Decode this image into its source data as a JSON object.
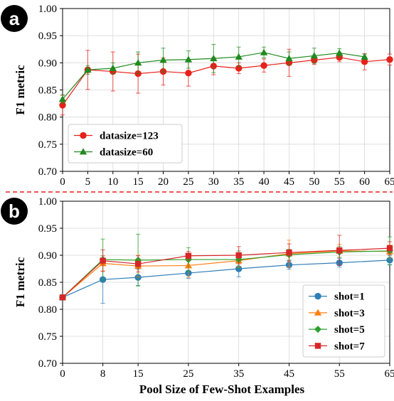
{
  "colors": {
    "red": "#e8201a",
    "green": "#1f8a1f",
    "blue": "#2f7fb8",
    "orange": "#ff7f0e",
    "green_b": "#2ca02c",
    "red_b": "#d62728",
    "divider": "#e8201a"
  },
  "chart_data": [
    {
      "panel_label": "a",
      "type": "line",
      "title": "",
      "xlabel": "",
      "ylabel": "F1 metric",
      "xlim": [
        0,
        65
      ],
      "ylim": [
        0.7,
        1.0
      ],
      "x_ticks": [
        0,
        5,
        10,
        15,
        20,
        25,
        30,
        35,
        40,
        45,
        50,
        55,
        60,
        65
      ],
      "y_ticks": [
        0.7,
        0.75,
        0.8,
        0.85,
        0.9,
        0.95,
        1.0
      ],
      "y_tick_labels": [
        "0.70",
        "0.75",
        "0.80",
        "0.85",
        "0.90",
        "0.95",
        "1.00"
      ],
      "grid": true,
      "legend_position": "lower-left",
      "series": [
        {
          "name": "datasize=123",
          "color_key": "red",
          "marker": "circle",
          "x": [
            0,
            5,
            10,
            15,
            20,
            25,
            30,
            35,
            40,
            45,
            50,
            55,
            60,
            65
          ],
          "y": [
            0.822,
            0.887,
            0.884,
            0.88,
            0.884,
            0.881,
            0.894,
            0.89,
            0.895,
            0.9,
            0.905,
            0.91,
            0.902,
            0.906
          ],
          "err": [
            0.018,
            0.036,
            0.036,
            0.036,
            0.025,
            0.024,
            0.016,
            0.01,
            0.012,
            0.025,
            0.008,
            0.008,
            0.015,
            0.01
          ]
        },
        {
          "name": "datasize=60",
          "color_key": "green",
          "marker": "triangle",
          "x": [
            0,
            5,
            10,
            15,
            20,
            25,
            30,
            35,
            40,
            45,
            50,
            55,
            60
          ],
          "y": [
            0.833,
            0.887,
            0.89,
            0.9,
            0.905,
            0.906,
            0.908,
            0.911,
            0.919,
            0.908,
            0.913,
            0.918,
            0.911
          ],
          "err": [
            0.008,
            0.008,
            0.01,
            0.02,
            0.022,
            0.016,
            0.026,
            0.018,
            0.01,
            0.012,
            0.014,
            0.008,
            0.005
          ]
        }
      ]
    },
    {
      "panel_label": "b",
      "type": "line",
      "title": "",
      "xlabel": "Pool Size of Few-Shot Examples",
      "ylabel": "F1 metric",
      "xlim": [
        0,
        65
      ],
      "ylim": [
        0.7,
        1.0
      ],
      "x_ticks": [
        0,
        8,
        15,
        25,
        35,
        45,
        55,
        65
      ],
      "y_ticks": [
        0.7,
        0.75,
        0.8,
        0.85,
        0.9,
        0.95,
        1.0
      ],
      "y_tick_labels": [
        "0.70",
        "0.75",
        "0.80",
        "0.85",
        "0.90",
        "0.95",
        "1.00"
      ],
      "grid": true,
      "legend_position": "lower-right",
      "series": [
        {
          "name": "shot=1",
          "color_key": "blue",
          "marker": "circle",
          "x": [
            0,
            8,
            15,
            25,
            35,
            45,
            55,
            65
          ],
          "y": [
            0.822,
            0.855,
            0.859,
            0.867,
            0.875,
            0.882,
            0.886,
            0.891
          ],
          "err": [
            0.004,
            0.044,
            0.015,
            0.01,
            0.015,
            0.008,
            0.008,
            0.008
          ]
        },
        {
          "name": "shot=3",
          "color_key": "orange",
          "marker": "triangle",
          "x": [
            0,
            8,
            15,
            25,
            35,
            45,
            55,
            65
          ],
          "y": [
            0.822,
            0.885,
            0.88,
            0.881,
            0.89,
            0.903,
            0.908,
            0.907
          ],
          "err": [
            0.004,
            0.014,
            0.02,
            0.022,
            0.012,
            0.025,
            0.012,
            0.012
          ]
        },
        {
          "name": "shot=5",
          "color_key": "green_b",
          "marker": "diamond",
          "x": [
            0,
            8,
            15,
            25,
            35,
            45,
            55,
            65
          ],
          "y": [
            0.822,
            0.892,
            0.891,
            0.892,
            0.892,
            0.901,
            0.906,
            0.908
          ],
          "err": [
            0.004,
            0.038,
            0.048,
            0.022,
            0.016,
            0.01,
            0.01,
            0.026
          ]
        },
        {
          "name": "shot=7",
          "color_key": "red_b",
          "marker": "square",
          "x": [
            0,
            8,
            15,
            25,
            35,
            45,
            55,
            65
          ],
          "y": [
            0.822,
            0.89,
            0.884,
            0.899,
            0.9,
            0.905,
            0.909,
            0.913
          ],
          "err": [
            0.004,
            0.02,
            0.015,
            0.008,
            0.016,
            0.016,
            0.028,
            0.012
          ]
        }
      ]
    }
  ]
}
